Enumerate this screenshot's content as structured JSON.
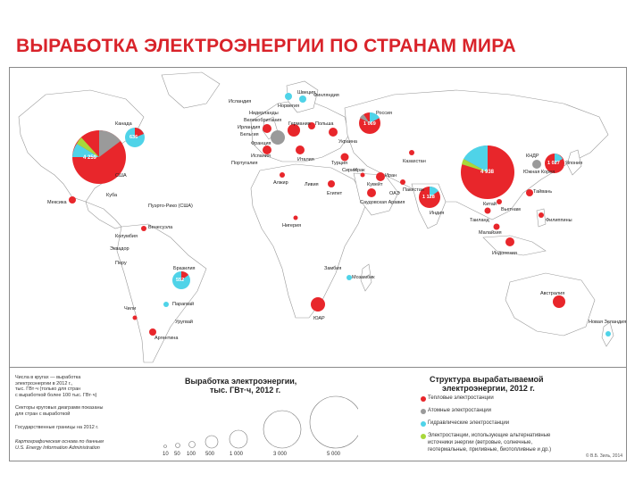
{
  "title": "ВЫРАБОТКА ЭЛЕКТРОЭНЕРГИИ ПО СТРАНАМ МИРА",
  "colors": {
    "thermal": "#e8262b",
    "nuclear": "#9a9a9a",
    "hydro": "#4fd3e8",
    "renewable": "#a8d83a",
    "land": "#ffffff",
    "water": "#ffffff",
    "border": "#c0405a"
  },
  "map": {
    "countries": [
      {
        "name": "США",
        "value": "4 259",
        "big": true
      },
      {
        "name": "Канада",
        "value": "636"
      },
      {
        "name": "Мексика"
      },
      {
        "name": "Куба"
      },
      {
        "name": "Пуэрто-Рико (США)"
      },
      {
        "name": "Венесуэла"
      },
      {
        "name": "Колумбия"
      },
      {
        "name": "Эквадор"
      },
      {
        "name": "Перу"
      },
      {
        "name": "Бразилия",
        "value": "552"
      },
      {
        "name": "Чили"
      },
      {
        "name": "Аргентина"
      },
      {
        "name": "Парагвай"
      },
      {
        "name": "Уругвай"
      },
      {
        "name": "Исландия"
      },
      {
        "name": "Норвегия"
      },
      {
        "name": "Швеция"
      },
      {
        "name": "Финляндия"
      },
      {
        "name": "Нидерланды"
      },
      {
        "name": "Великобритания"
      },
      {
        "name": "Ирландия"
      },
      {
        "name": "Бельгия"
      },
      {
        "name": "Франция"
      },
      {
        "name": "Испания"
      },
      {
        "name": "Португалия"
      },
      {
        "name": "Германия"
      },
      {
        "name": "Италия"
      },
      {
        "name": "Польша"
      },
      {
        "name": "Украина"
      },
      {
        "name": "Россия",
        "value": "1 069"
      },
      {
        "name": "Казахстан"
      },
      {
        "name": "Турция"
      },
      {
        "name": "Иран"
      },
      {
        "name": "Ирак"
      },
      {
        "name": "Сирия"
      },
      {
        "name": "Египет"
      },
      {
        "name": "Алжир"
      },
      {
        "name": "Ливия"
      },
      {
        "name": "Саудовская Аравия"
      },
      {
        "name": "ОАЭ"
      },
      {
        "name": "Кувейт"
      },
      {
        "name": "Пакистан"
      },
      {
        "name": "Индия",
        "value": "1 128"
      },
      {
        "name": "Китай",
        "value": "4 938",
        "big": true
      },
      {
        "name": "Япония",
        "value": "1 027"
      },
      {
        "name": "Южная Корея"
      },
      {
        "name": "КНДР"
      },
      {
        "name": "Тайвань"
      },
      {
        "name": "Вьетнам"
      },
      {
        "name": "Таиланд"
      },
      {
        "name": "Малайзия"
      },
      {
        "name": "Филиппины"
      },
      {
        "name": "Индонезия"
      },
      {
        "name": "Австралия"
      },
      {
        "name": "Новая Зеландия"
      },
      {
        "name": "ЮАР"
      },
      {
        "name": "Нигерия"
      },
      {
        "name": "Мозамбик"
      },
      {
        "name": "Замбия"
      }
    ]
  },
  "legend": {
    "note_lines": [
      "Числа в кругах — выработка",
      "электроэнергии в 2012 г.,",
      "тыс. ГВт·ч (только для стран",
      "с выработкой более 100 тыс. ГВт·ч)"
    ],
    "note2_lines": [
      "Секторы круговых диаграмм показаны",
      "для стран с выработкой"
    ],
    "borders_note": "Государственные границы на 2012 г.",
    "source_lines": [
      "Картографическая основа по данным",
      "U.S. Energy Information Administration"
    ],
    "size_title_line1": "Выработка электроэнергии,",
    "size_title_line2": "тыс. ГВт·ч, 2012 г.",
    "size_ticks": [
      "10",
      "50",
      "100",
      "500",
      "1 000",
      "3 000",
      "5 000"
    ],
    "structure_title_line1": "Структура вырабатываемой",
    "structure_title_line2": "электроэнергии, 2012 г.",
    "structure_items": [
      {
        "label": "Тепловые электростанции",
        "key": "thermal"
      },
      {
        "label": "Атомные электростанции",
        "key": "nuclear"
      },
      {
        "label": "Гидравлические электростанции",
        "key": "hydro"
      },
      {
        "label": "Электростанции, использующие альтернативные",
        "key": "renewable"
      }
    ],
    "structure_extra_lines": [
      "источники энергии (ветровые, солнечные,",
      "геотермальные, приливные, биотопливные и др.)"
    ],
    "copyright": "© В.Б. Зиль, 2014"
  }
}
